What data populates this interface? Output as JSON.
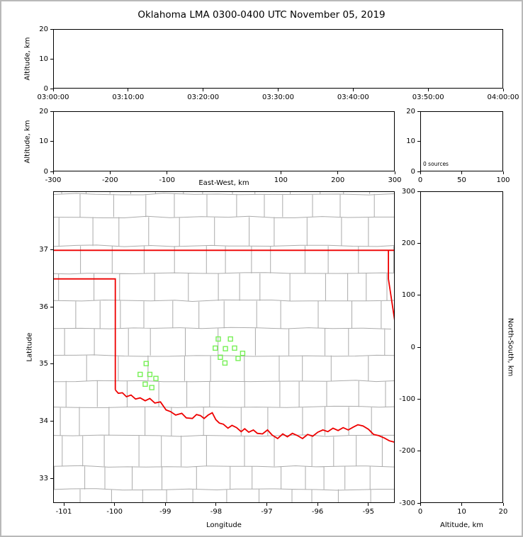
{
  "title": "Oklahoma LMA 0300-0400 UTC November 05, 2019",
  "colors": {
    "state_border": "#ee0000",
    "county_line": "#ababab",
    "station_marker": "#76f055",
    "axis": "#000000",
    "background": "#ffffff",
    "frame": "#b9b9b9"
  },
  "chart_data": [
    {
      "id": "time_height",
      "type": "scatter",
      "xlim": [
        0,
        3600
      ],
      "ylim": [
        0,
        20
      ],
      "xticks": [
        {
          "v": 0,
          "label": "03:00:00"
        },
        {
          "v": 600,
          "label": "03:10:00"
        },
        {
          "v": 1200,
          "label": "03:20:00"
        },
        {
          "v": 1800,
          "label": "03:30:00"
        },
        {
          "v": 2400,
          "label": "03:40:00"
        },
        {
          "v": 3000,
          "label": "03:50:00"
        },
        {
          "v": 3600,
          "label": "04:00:00"
        }
      ],
      "yticks": [
        {
          "v": 0,
          "label": "0"
        },
        {
          "v": 10,
          "label": "10"
        },
        {
          "v": 20,
          "label": "20"
        }
      ],
      "xlabel": "",
      "ylabel": "Altitude, km",
      "points": []
    },
    {
      "id": "ew_height",
      "type": "scatter",
      "xlim": [
        -300,
        300
      ],
      "ylim": [
        0,
        20
      ],
      "xticks": [
        {
          "v": -300,
          "label": "-300"
        },
        {
          "v": -200,
          "label": "-200"
        },
        {
          "v": -100,
          "label": "-100"
        },
        {
          "v": 100,
          "label": "100"
        },
        {
          "v": 200,
          "label": "200"
        },
        {
          "v": 300,
          "label": "300"
        }
      ],
      "yticks": [
        {
          "v": 0,
          "label": "0"
        },
        {
          "v": 10,
          "label": "10"
        },
        {
          "v": 20,
          "label": "20"
        }
      ],
      "xlabel": "East-West, km",
      "ylabel": "Altitude, km",
      "points": []
    },
    {
      "id": "src_hist",
      "type": "line",
      "xlim": [
        0,
        100
      ],
      "ylim": [
        0,
        20
      ],
      "xticks": [
        {
          "v": 0,
          "label": "0"
        },
        {
          "v": 50,
          "label": "50"
        },
        {
          "v": 100,
          "label": "100"
        }
      ],
      "yticks": [
        {
          "v": 0,
          "label": "0"
        },
        {
          "v": 10,
          "label": "10"
        },
        {
          "v": 20,
          "label": "20"
        }
      ],
      "xlabel": "",
      "ylabel": "",
      "annotation": {
        "text": "0 sources"
      },
      "points": []
    },
    {
      "id": "plan_view",
      "type": "scatter",
      "xlim": [
        -101.21,
        -94.48
      ],
      "ylim": [
        32.57,
        38.02
      ],
      "xticks": [
        {
          "v": -101,
          "label": "-101"
        },
        {
          "v": -100,
          "label": "-100"
        },
        {
          "v": -99,
          "label": "-99"
        },
        {
          "v": -98,
          "label": "-98"
        },
        {
          "v": -97,
          "label": "-97"
        },
        {
          "v": -96,
          "label": "-96"
        },
        {
          "v": -95,
          "label": "-95"
        }
      ],
      "yticks": [
        {
          "v": 33,
          "label": "33"
        },
        {
          "v": 34,
          "label": "34"
        },
        {
          "v": 35,
          "label": "35"
        },
        {
          "v": 36,
          "label": "36"
        },
        {
          "v": 37,
          "label": "37"
        }
      ],
      "xlabel": "Longitude",
      "ylabel": "Latitude",
      "stations": [
        [
          -99.39,
          35.02
        ],
        [
          -99.51,
          34.83
        ],
        [
          -99.32,
          34.83
        ],
        [
          -99.2,
          34.76
        ],
        [
          -99.41,
          34.66
        ],
        [
          -99.28,
          34.6
        ],
        [
          -97.97,
          35.45
        ],
        [
          -97.73,
          35.45
        ],
        [
          -98.03,
          35.29
        ],
        [
          -97.83,
          35.28
        ],
        [
          -97.65,
          35.29
        ],
        [
          -97.93,
          35.13
        ],
        [
          -97.84,
          35.03
        ],
        [
          -97.49,
          35.2
        ],
        [
          -97.58,
          35.11
        ]
      ],
      "state_borders": [
        {
          "name": "oklahoma-kansas-north-37N",
          "points": [
            [
              -101.21,
              37
            ],
            [
              -94.48,
              37
            ]
          ]
        },
        {
          "name": "panhandle-texas-border",
          "points": [
            [
              -101.21,
              36.5
            ],
            [
              -100.0,
              36.5
            ],
            [
              -100.0,
              34.56
            ]
          ]
        },
        {
          "name": "missouri-arkansas-east",
          "points": [
            [
              -94.618,
              37
            ],
            [
              -94.618,
              36.5
            ],
            [
              -94.43,
              35.39
            ],
            [
              -94.43,
              33.64
            ]
          ]
        },
        {
          "name": "red-river-south",
          "points": [
            [
              -100.0,
              34.56
            ],
            [
              -99.94,
              34.5
            ],
            [
              -99.86,
              34.51
            ],
            [
              -99.78,
              34.44
            ],
            [
              -99.69,
              34.47
            ],
            [
              -99.6,
              34.4
            ],
            [
              -99.51,
              34.42
            ],
            [
              -99.41,
              34.37
            ],
            [
              -99.32,
              34.41
            ],
            [
              -99.22,
              34.33
            ],
            [
              -99.11,
              34.35
            ],
            [
              -99.0,
              34.21
            ],
            [
              -98.91,
              34.18
            ],
            [
              -98.81,
              34.12
            ],
            [
              -98.69,
              34.15
            ],
            [
              -98.6,
              34.07
            ],
            [
              -98.48,
              34.06
            ],
            [
              -98.4,
              34.13
            ],
            [
              -98.32,
              34.11
            ],
            [
              -98.25,
              34.06
            ],
            [
              -98.17,
              34.12
            ],
            [
              -98.09,
              34.16
            ],
            [
              -98.02,
              34.04
            ],
            [
              -97.95,
              33.98
            ],
            [
              -97.87,
              33.96
            ],
            [
              -97.78,
              33.89
            ],
            [
              -97.7,
              33.94
            ],
            [
              -97.61,
              33.9
            ],
            [
              -97.52,
              33.83
            ],
            [
              -97.45,
              33.88
            ],
            [
              -97.37,
              33.82
            ],
            [
              -97.28,
              33.86
            ],
            [
              -97.2,
              33.8
            ],
            [
              -97.1,
              33.79
            ],
            [
              -97.0,
              33.86
            ],
            [
              -96.91,
              33.77
            ],
            [
              -96.8,
              33.71
            ],
            [
              -96.7,
              33.79
            ],
            [
              -96.61,
              33.74
            ],
            [
              -96.51,
              33.8
            ],
            [
              -96.41,
              33.76
            ],
            [
              -96.31,
              33.71
            ],
            [
              -96.21,
              33.78
            ],
            [
              -96.11,
              33.75
            ],
            [
              -96.01,
              33.82
            ],
            [
              -95.91,
              33.86
            ],
            [
              -95.81,
              33.83
            ],
            [
              -95.71,
              33.89
            ],
            [
              -95.61,
              33.85
            ],
            [
              -95.51,
              33.9
            ],
            [
              -95.41,
              33.86
            ],
            [
              -95.31,
              33.91
            ],
            [
              -95.22,
              33.95
            ],
            [
              -95.12,
              33.93
            ],
            [
              -95.01,
              33.87
            ],
            [
              -94.91,
              33.78
            ],
            [
              -94.81,
              33.76
            ],
            [
              -94.7,
              33.72
            ],
            [
              -94.6,
              33.67
            ],
            [
              -94.47,
              33.64
            ]
          ]
        }
      ],
      "points": []
    },
    {
      "id": "ns_height",
      "type": "scatter",
      "xlim": [
        0,
        20
      ],
      "ylim": [
        -300,
        300
      ],
      "xticks": [
        {
          "v": 0,
          "label": "0"
        },
        {
          "v": 10,
          "label": "10"
        },
        {
          "v": 20,
          "label": "20"
        }
      ],
      "yticks": [
        {
          "v": 300,
          "label": "300"
        },
        {
          "v": 200,
          "label": "200"
        },
        {
          "v": 100,
          "label": "100"
        },
        {
          "v": 0,
          "label": "0"
        },
        {
          "v": -100,
          "label": "-100"
        },
        {
          "v": -200,
          "label": "-200"
        },
        {
          "v": -300,
          "label": "-300"
        }
      ],
      "xlabel": "Altitude, km",
      "ylabel_right": "North-South, km",
      "points": []
    }
  ]
}
